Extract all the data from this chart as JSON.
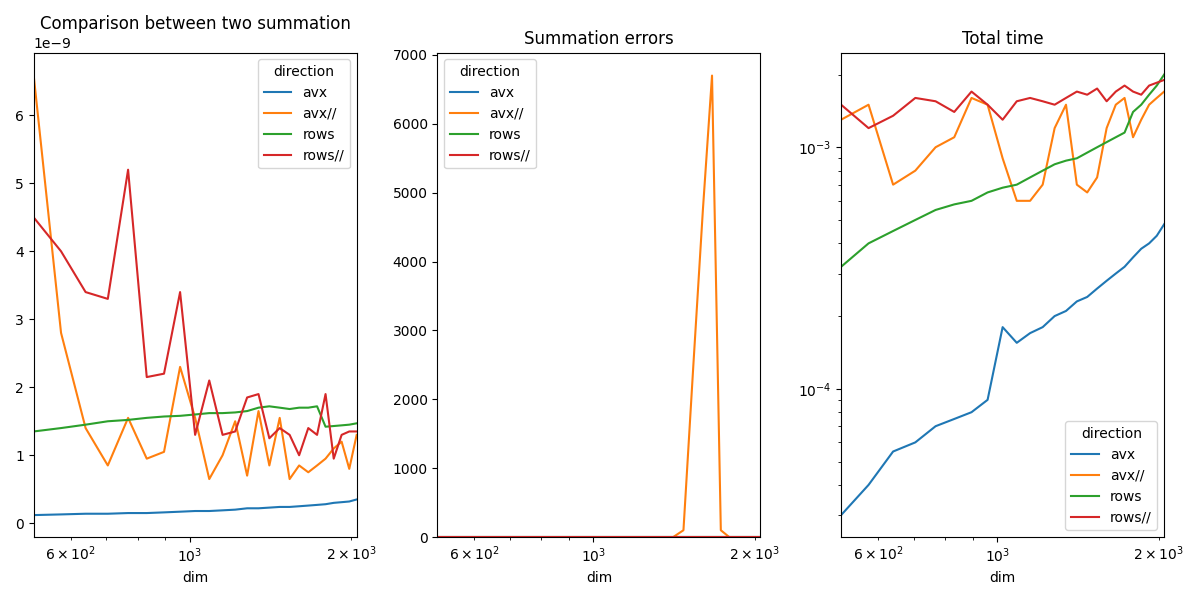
{
  "title1": "Comparison between two summation",
  "title2": "Summation errors",
  "title3": "Total time",
  "xlabel": "dim",
  "legend_title": "direction",
  "labels": [
    "avx",
    "avx//",
    "rows",
    "rows//"
  ],
  "colors": [
    "#1f77b4",
    "#ff7f0e",
    "#2ca02c",
    "#d62728"
  ],
  "dim": [
    512,
    576,
    640,
    704,
    768,
    832,
    896,
    960,
    1024,
    1088,
    1152,
    1216,
    1280,
    1344,
    1408,
    1472,
    1536,
    1600,
    1664,
    1728,
    1792,
    1856,
    1920,
    1984,
    2048
  ],
  "plot1_avx": [
    0.12,
    0.13,
    0.14,
    0.14,
    0.15,
    0.15,
    0.16,
    0.17,
    0.18,
    0.18,
    0.19,
    0.2,
    0.22,
    0.22,
    0.23,
    0.24,
    0.24,
    0.25,
    0.26,
    0.27,
    0.28,
    0.3,
    0.31,
    0.32,
    0.35
  ],
  "plot1_avxp": [
    6.6,
    2.8,
    1.4,
    0.85,
    1.55,
    0.95,
    1.05,
    2.3,
    1.55,
    0.65,
    1.0,
    1.5,
    0.7,
    1.65,
    0.85,
    1.55,
    0.65,
    0.85,
    0.75,
    0.85,
    0.95,
    1.1,
    1.2,
    0.8,
    1.3
  ],
  "plot1_rows": [
    1.35,
    1.4,
    1.45,
    1.5,
    1.52,
    1.55,
    1.57,
    1.58,
    1.6,
    1.62,
    1.62,
    1.63,
    1.65,
    1.7,
    1.72,
    1.7,
    1.68,
    1.7,
    1.7,
    1.72,
    1.42,
    1.43,
    1.44,
    1.45,
    1.47
  ],
  "plot1_rowsp": [
    4.5,
    4.0,
    3.4,
    3.3,
    5.2,
    2.15,
    2.2,
    3.4,
    1.3,
    2.1,
    1.3,
    1.35,
    1.85,
    1.9,
    1.25,
    1.4,
    1.3,
    1.0,
    1.4,
    1.3,
    1.9,
    0.95,
    1.3,
    1.35,
    1.35
  ],
  "plot2_avx": [
    0,
    0,
    0,
    0,
    0,
    0,
    0,
    0,
    0,
    0,
    0,
    0,
    0,
    0,
    0,
    0,
    0,
    0,
    0,
    0,
    0,
    0,
    0,
    0,
    0
  ],
  "plot2_avxp": [
    0,
    0,
    0,
    0,
    0,
    0,
    0,
    0,
    0,
    0,
    0,
    0,
    0,
    0,
    0,
    100,
    2500,
    4750,
    6700,
    100,
    0,
    0,
    0,
    0,
    0
  ],
  "plot2_rows": [
    0,
    0,
    0,
    0,
    0,
    0,
    0,
    0,
    0,
    0,
    0,
    0,
    0,
    0,
    0,
    0,
    0,
    0,
    0,
    0,
    0,
    0,
    0,
    0,
    0
  ],
  "plot2_rowsp": [
    0,
    0,
    0,
    0,
    0,
    0,
    0,
    0,
    0,
    0,
    0,
    0,
    0,
    0,
    0,
    0,
    0,
    0,
    0,
    0,
    0,
    0,
    0,
    0,
    0
  ],
  "plot3_avx": [
    3e-05,
    4e-05,
    5.5e-05,
    6e-05,
    7e-05,
    7.5e-05,
    8e-05,
    9e-05,
    0.00018,
    0.000155,
    0.00017,
    0.00018,
    0.0002,
    0.00021,
    0.00023,
    0.00024,
    0.00026,
    0.00028,
    0.0003,
    0.00032,
    0.00035,
    0.00038,
    0.0004,
    0.00043,
    0.00048
  ],
  "plot3_avxp": [
    0.0013,
    0.0015,
    0.0007,
    0.0008,
    0.001,
    0.0011,
    0.0016,
    0.0015,
    0.0009,
    0.0006,
    0.0006,
    0.0007,
    0.0012,
    0.0015,
    0.0007,
    0.00065,
    0.00075,
    0.0012,
    0.0015,
    0.0016,
    0.0011,
    0.0013,
    0.0015,
    0.0016,
    0.0017
  ],
  "plot3_rows": [
    0.00032,
    0.0004,
    0.00045,
    0.0005,
    0.00055,
    0.00058,
    0.0006,
    0.00065,
    0.00068,
    0.0007,
    0.00075,
    0.0008,
    0.00085,
    0.00088,
    0.0009,
    0.00095,
    0.001,
    0.00105,
    0.0011,
    0.00115,
    0.0014,
    0.0015,
    0.00165,
    0.0018,
    0.002
  ],
  "plot3_rowsp": [
    0.0015,
    0.0012,
    0.00135,
    0.0016,
    0.00155,
    0.0014,
    0.0017,
    0.0015,
    0.0013,
    0.00155,
    0.0016,
    0.00155,
    0.0015,
    0.0016,
    0.0017,
    0.00165,
    0.00175,
    0.00155,
    0.0017,
    0.0018,
    0.0017,
    0.00165,
    0.0018,
    0.00185,
    0.0019
  ],
  "fig_width": 12.0,
  "fig_height": 6.0,
  "fig_dpi": 100
}
